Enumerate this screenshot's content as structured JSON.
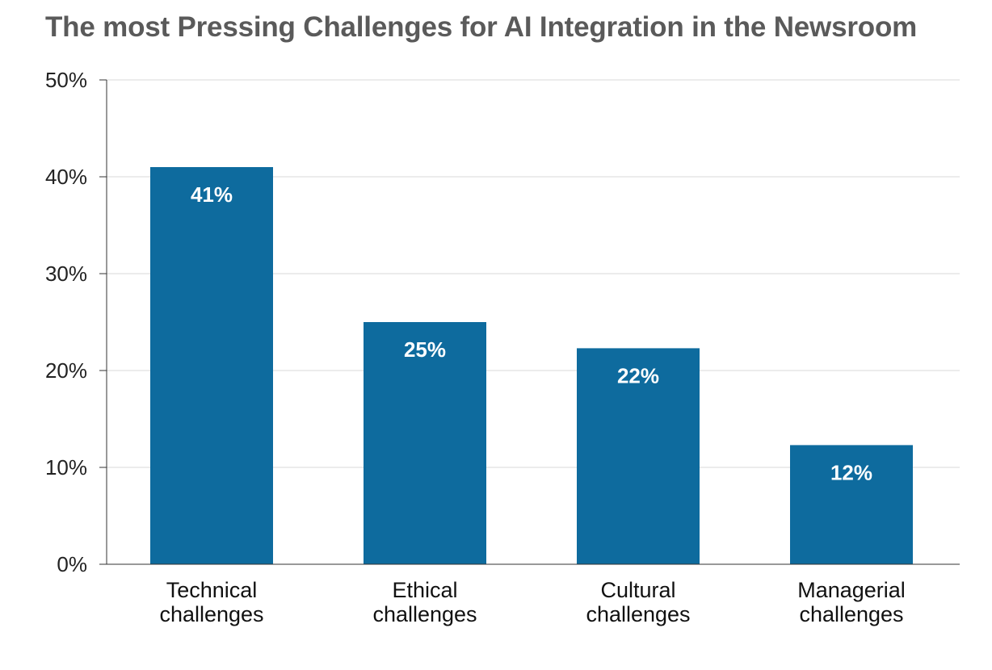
{
  "chart_data": {
    "type": "bar",
    "title": "The most Pressing Challenges for AI Integration in the Newsroom",
    "xlabel": "",
    "ylabel": "",
    "categories": [
      [
        "Technical",
        "challenges"
      ],
      [
        "Ethical",
        "challenges"
      ],
      [
        "Cultural",
        "challenges"
      ],
      [
        "Managerial",
        "challenges"
      ]
    ],
    "values": [
      41,
      25,
      22.3,
      12.3
    ],
    "data_labels": [
      "41%",
      "25%",
      "22%",
      "12%"
    ],
    "ylim": [
      0,
      50
    ],
    "yticks": [
      0,
      10,
      20,
      30,
      40,
      50
    ],
    "ytick_labels": [
      "0%",
      "10%",
      "20%",
      "30%",
      "40%",
      "50%"
    ],
    "grid": true,
    "legend": "none",
    "bar_color": "#0e6b9e",
    "grid_color": "#d9d9d9",
    "axis_color": "#333333"
  }
}
